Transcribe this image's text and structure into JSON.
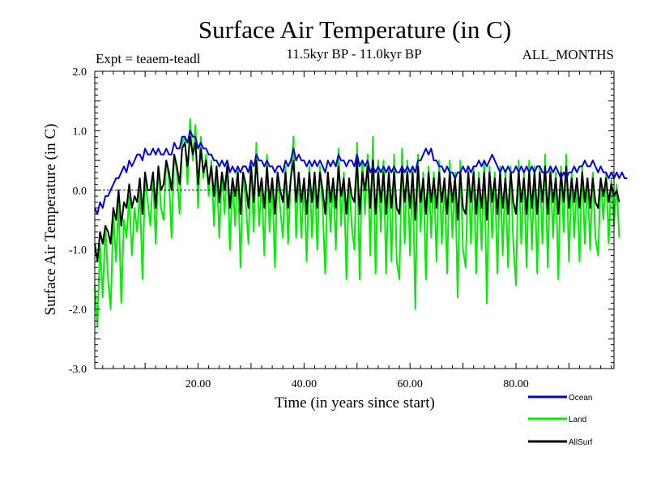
{
  "chart_data": {
    "type": "line",
    "title": "Surface Air Temperature (in C)",
    "subtitle": "11.5kyr BP - 11.0kyr BP",
    "experiment": "Expt = teaem-teadl",
    "period": "ALL_MONTHS",
    "xlabel": "Time (in years since start)",
    "ylabel": "Surface Air Temperature (in C)",
    "xlim": [
      0.5,
      98.5
    ],
    "ylim": [
      -3.0,
      2.0
    ],
    "x_ticks": [
      20,
      40,
      60,
      80
    ],
    "x_tick_labels": [
      "20.00",
      "40.00",
      "60.00",
      "80.00"
    ],
    "y_ticks": [
      -3,
      -2,
      -1,
      0,
      1,
      2
    ],
    "y_tick_labels": [
      "-3.0",
      "-2.0",
      "-1.0",
      "0.0",
      "1.0",
      "2.0"
    ],
    "zero_line": true,
    "legend_position": "bottom-right",
    "series": [
      {
        "name": "Land",
        "color": "#00ee00",
        "x_start": 0.5,
        "x_step": 0.5,
        "values": [
          -1.6,
          -2.3,
          -0.9,
          -1.8,
          -0.6,
          -1.5,
          -2.0,
          -0.4,
          -1.2,
          -0.2,
          -1.9,
          -0.5,
          -0.8,
          -0.1,
          -1.1,
          -0.3,
          -0.7,
          0.0,
          -1.5,
          0.2,
          -0.2,
          -0.6,
          0.3,
          -0.9,
          0.4,
          -0.3,
          -0.5,
          0.5,
          0.2,
          -0.8,
          0.6,
          0.3,
          -0.4,
          0.8,
          0.9,
          0.1,
          1.2,
          0.5,
          1.1,
          -0.3,
          0.9,
          0.2,
          0.6,
          -0.1,
          0.5,
          -0.6,
          0.4,
          -0.8,
          0.3,
          -0.4,
          0.5,
          -1.0,
          0.2,
          -0.6,
          0.4,
          -1.3,
          0.3,
          -0.2,
          -0.9,
          0.5,
          -0.7,
          0.8,
          -0.6,
          0.1,
          -1.1,
          0.6,
          -0.7,
          0.2,
          -1.3,
          0.3,
          -0.3,
          -0.8,
          0.4,
          -0.9,
          0.2,
          0.9,
          -0.8,
          0.3,
          -0.8,
          0.2,
          -1.2,
          0.4,
          -0.8,
          0.3,
          -1.0,
          0.4,
          -0.3,
          -1.4,
          0.3,
          -0.7,
          0.2,
          -1.0,
          0.7,
          -0.6,
          0.3,
          -1.5,
          0.2,
          -0.6,
          -1.0,
          0.8,
          -1.5,
          0.5,
          -0.4,
          0.6,
          -1.1,
          0.9,
          -1.4,
          0.5,
          -0.7,
          0.5,
          -1.4,
          0.4,
          -1.2,
          0.6,
          -1.2,
          -1.5,
          0.7,
          -0.9,
          0.5,
          -1.1,
          0.4,
          -2.0,
          0.6,
          -0.7,
          0.3,
          -1.5,
          0.4,
          -0.8,
          0.3,
          -1.2,
          0.5,
          -0.9,
          0.2,
          -1.4,
          0.5,
          -0.8,
          0.3,
          -1.8,
          0.5,
          -1.0,
          -1.3,
          0.4,
          -0.9,
          0.4,
          -1.4,
          0.3,
          -1.0,
          0.5,
          -1.9,
          0.4,
          -0.8,
          0.3,
          -1.4,
          0.4,
          -1.1,
          0.3,
          -1.3,
          0.4,
          -0.9,
          -1.6,
          0.5,
          -0.9,
          0.3,
          -1.3,
          0.5,
          -1.0,
          0.4,
          -1.4,
          0.4,
          -0.9,
          0.6,
          -1.3,
          0.4,
          -0.8,
          0.3,
          -1.5,
          0.4,
          -0.7,
          0.6,
          -1.2,
          0.3,
          -0.8,
          0.2,
          -1.2,
          0.4,
          -0.9,
          0.2,
          -1.0,
          0.3,
          -0.8,
          -1.1,
          0.2,
          -0.5,
          0.3,
          -0.9,
          0.2,
          -0.6,
          0.1,
          -0.8
        ]
      },
      {
        "name": "AllSurf",
        "color": "#000000",
        "x_start": 0.5,
        "x_step": 0.5,
        "values": [
          -0.9,
          -1.2,
          -0.7,
          -0.9,
          -0.6,
          -0.7,
          -0.9,
          -0.3,
          -0.5,
          0.0,
          -0.6,
          -0.2,
          -0.3,
          0.1,
          -0.3,
          -0.1,
          -0.2,
          0.2,
          -0.4,
          0.3,
          0.0,
          0.0,
          0.3,
          -0.3,
          0.4,
          0.0,
          0.1,
          0.5,
          0.3,
          0.0,
          0.6,
          0.4,
          0.1,
          0.7,
          0.8,
          0.4,
          0.9,
          0.6,
          0.8,
          0.1,
          0.7,
          0.3,
          0.5,
          0.1,
          0.4,
          -0.1,
          0.4,
          -0.2,
          0.3,
          0.0,
          0.4,
          -0.3,
          0.2,
          -0.1,
          0.3,
          -0.4,
          0.3,
          0.1,
          -0.3,
          0.4,
          -0.2,
          0.5,
          -0.1,
          0.2,
          -0.3,
          0.4,
          -0.2,
          0.2,
          -0.4,
          0.3,
          0.0,
          -0.2,
          0.3,
          -0.3,
          0.2,
          0.5,
          -0.2,
          0.3,
          -0.2,
          0.2,
          -0.4,
          0.3,
          -0.2,
          0.3,
          -0.3,
          0.3,
          0.0,
          -0.4,
          0.3,
          -0.2,
          0.2,
          -0.3,
          0.4,
          -0.1,
          0.2,
          -0.4,
          0.2,
          -0.1,
          -0.2,
          0.5,
          -0.4,
          0.3,
          0.0,
          0.4,
          -0.3,
          0.5,
          -0.4,
          0.3,
          -0.2,
          0.3,
          -0.4,
          0.3,
          -0.3,
          0.3,
          -0.3,
          -0.4,
          0.4,
          -0.2,
          0.3,
          -0.3,
          0.3,
          -0.5,
          0.4,
          -0.2,
          0.2,
          -0.4,
          0.3,
          -0.2,
          0.2,
          -0.3,
          0.3,
          -0.2,
          0.2,
          -0.4,
          0.3,
          -0.2,
          0.2,
          -0.5,
          0.3,
          -0.3,
          -0.4,
          0.3,
          -0.2,
          0.3,
          -0.4,
          0.2,
          -0.3,
          0.3,
          -0.5,
          0.3,
          -0.2,
          0.2,
          -0.4,
          0.3,
          -0.3,
          0.2,
          -0.4,
          0.3,
          -0.2,
          -0.4,
          0.3,
          -0.2,
          0.2,
          -0.4,
          0.3,
          -0.3,
          0.3,
          -0.4,
          0.3,
          -0.2,
          0.4,
          -0.4,
          0.3,
          -0.2,
          0.2,
          -0.4,
          0.3,
          -0.2,
          0.4,
          -0.3,
          0.2,
          -0.2,
          0.2,
          -0.3,
          0.3,
          -0.2,
          0.2,
          -0.3,
          0.2,
          -0.2,
          -0.3,
          0.2,
          -0.1,
          0.2,
          -0.2,
          0.1,
          -0.1,
          0.0,
          -0.2
        ]
      },
      {
        "name": "Ocean",
        "color": "#0000dd",
        "x_start": 0.5,
        "x_step": 0.5,
        "values": [
          -0.3,
          -0.4,
          -0.2,
          -0.3,
          -0.1,
          -0.1,
          0.0,
          0.1,
          0.2,
          0.2,
          0.3,
          0.4,
          0.3,
          0.5,
          0.4,
          0.5,
          0.6,
          0.6,
          0.5,
          0.7,
          0.6,
          0.6,
          0.7,
          0.6,
          0.7,
          0.6,
          0.6,
          0.7,
          0.6,
          0.6,
          0.8,
          0.7,
          0.7,
          0.9,
          0.9,
          0.8,
          1.0,
          0.9,
          0.9,
          0.7,
          0.8,
          0.7,
          0.7,
          0.6,
          0.6,
          0.5,
          0.5,
          0.4,
          0.5,
          0.4,
          0.5,
          0.3,
          0.4,
          0.3,
          0.4,
          0.3,
          0.4,
          0.4,
          0.3,
          0.5,
          0.4,
          0.6,
          0.5,
          0.5,
          0.4,
          0.5,
          0.4,
          0.4,
          0.3,
          0.4,
          0.4,
          0.3,
          0.5,
          0.4,
          0.5,
          0.7,
          0.5,
          0.6,
          0.5,
          0.5,
          0.4,
          0.5,
          0.4,
          0.5,
          0.4,
          0.5,
          0.4,
          0.3,
          0.5,
          0.4,
          0.5,
          0.4,
          0.6,
          0.5,
          0.5,
          0.4,
          0.5,
          0.5,
          0.4,
          0.6,
          0.4,
          0.5,
          0.4,
          0.5,
          0.3,
          0.4,
          0.3,
          0.4,
          0.3,
          0.4,
          0.3,
          0.4,
          0.3,
          0.4,
          0.3,
          0.3,
          0.4,
          0.3,
          0.4,
          0.3,
          0.4,
          0.3,
          0.5,
          0.5,
          0.6,
          0.7,
          0.6,
          0.7,
          0.5,
          0.5,
          0.4,
          0.4,
          0.3,
          0.4,
          0.3,
          0.3,
          0.2,
          0.3,
          0.3,
          0.4,
          0.3,
          0.4,
          0.3,
          0.4,
          0.4,
          0.5,
          0.4,
          0.5,
          0.4,
          0.5,
          0.6,
          0.5,
          0.4,
          0.3,
          0.4,
          0.3,
          0.4,
          0.3,
          0.3,
          0.4,
          0.3,
          0.4,
          0.3,
          0.4,
          0.3,
          0.4,
          0.3,
          0.4,
          0.4,
          0.3,
          0.3,
          0.3,
          0.4,
          0.3,
          0.4,
          0.3,
          0.2,
          0.3,
          0.2,
          0.3,
          0.3,
          0.4,
          0.3,
          0.4,
          0.4,
          0.5,
          0.4,
          0.4,
          0.5,
          0.4,
          0.3,
          0.4,
          0.3,
          0.3,
          0.2,
          0.3,
          0.2,
          0.3,
          0.2,
          0.3,
          0.2,
          0.2
        ]
      }
    ],
    "legend": [
      {
        "name": "Ocean",
        "color": "#0000dd"
      },
      {
        "name": "Land",
        "color": "#00ee00"
      },
      {
        "name": "AllSurf",
        "color": "#000000"
      }
    ]
  }
}
